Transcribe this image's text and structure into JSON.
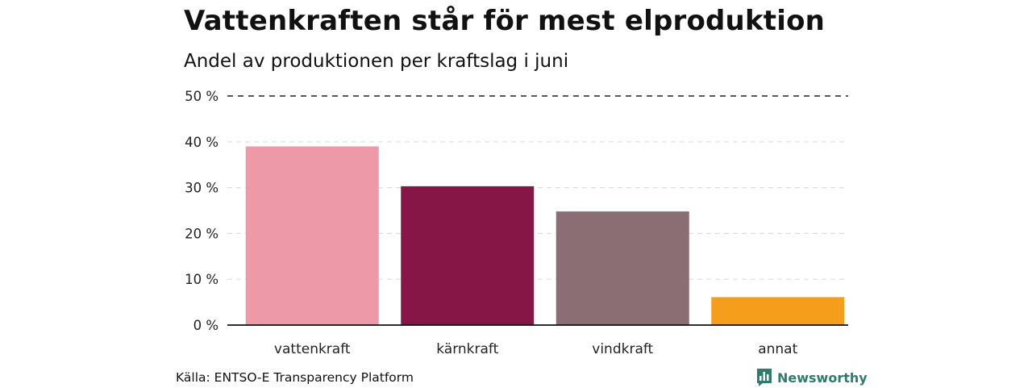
{
  "header": {
    "title": "Vattenkraften står för mest elproduktion",
    "subtitle": "Andel av produktionen per kraftslag i juni"
  },
  "footer": {
    "source": "Källa: ENTSO-E Transparency Platform",
    "brand": "Newsworthy",
    "brand_icon": "newsworthy-bar-chart-logo-icon",
    "brand_color": "#2e7b6f"
  },
  "chart_data": {
    "type": "bar",
    "title": "Vattenkraften står för mest elproduktion",
    "subtitle": "Andel av produktionen per kraftslag i juni",
    "categories": [
      "vattenkraft",
      "kärnkraft",
      "vindkraft",
      "annat"
    ],
    "values": [
      39,
      30.3,
      24.8,
      6.1
    ],
    "colors": [
      "#ee99a7",
      "#851646",
      "#8b6e73",
      "#f59e1b"
    ],
    "ylim": [
      0,
      50
    ],
    "yticks": [
      0,
      10,
      20,
      30,
      40,
      50
    ],
    "ytick_labels": [
      "0 %",
      "10 %",
      "20 %",
      "30 %",
      "40 %",
      "50 %"
    ],
    "grid": true,
    "legend": "none"
  }
}
